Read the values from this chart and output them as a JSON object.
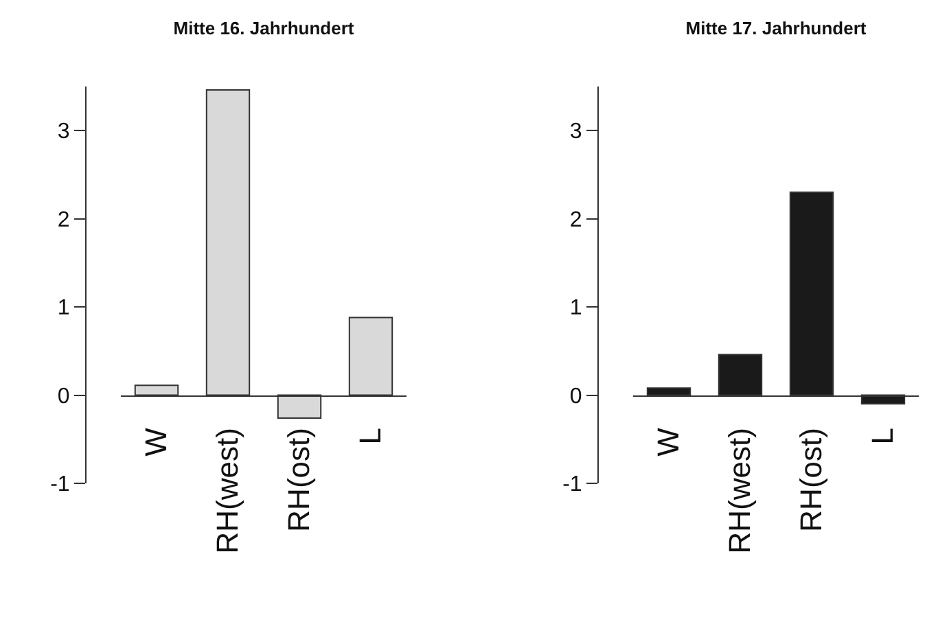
{
  "chart_data": [
    {
      "type": "bar",
      "title": "Mitte 16. Jahrhundert",
      "categories": [
        "W",
        "RH(west)",
        "RH(ost)",
        "L"
      ],
      "values": [
        0.11,
        3.46,
        -0.26,
        0.88
      ],
      "color": "#d9d9d9",
      "ylim": [
        -1,
        3.5
      ],
      "yticks": [
        -1,
        0,
        1,
        2,
        3
      ],
      "grid": false,
      "legend": false
    },
    {
      "type": "bar",
      "title": "Mitte 17. Jahrhundert",
      "categories": [
        "W",
        "RH(west)",
        "RH(ost)",
        "L"
      ],
      "values": [
        0.08,
        0.46,
        2.3,
        -0.1
      ],
      "color": "#1a1a1a",
      "ylim": [
        -1,
        3.5
      ],
      "yticks": [
        -1,
        0,
        1,
        2,
        3
      ],
      "grid": false,
      "legend": false
    }
  ]
}
